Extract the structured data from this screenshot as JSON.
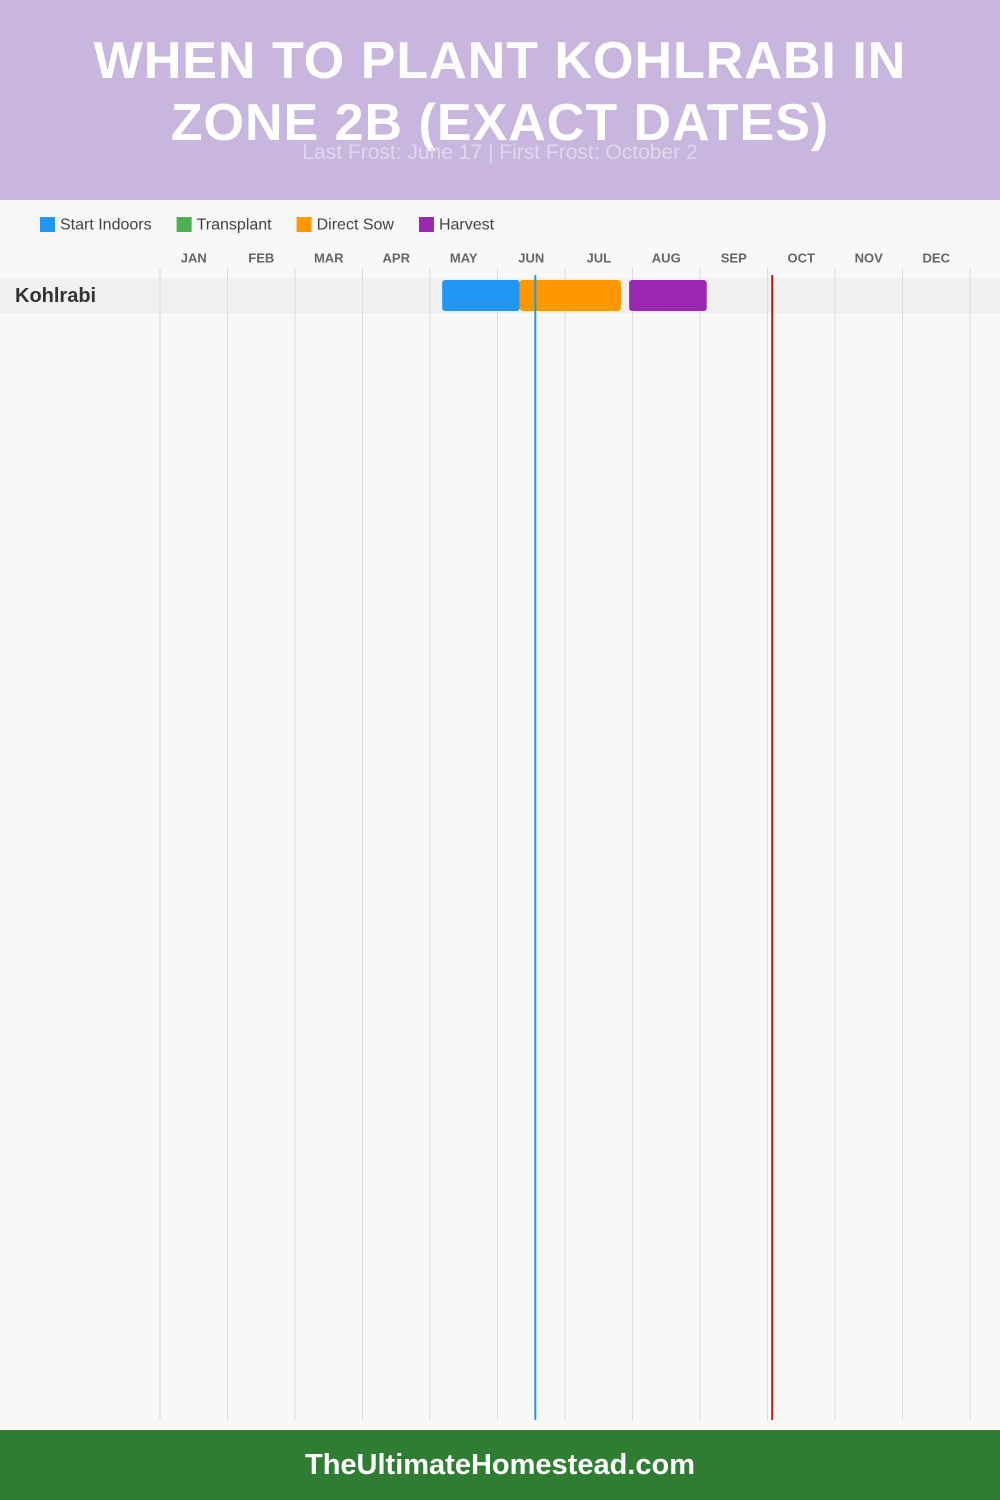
{
  "chart_data": {
    "type": "gantt",
    "title": "WHEN TO PLANT KOHLRABI IN ZONE 2B (EXACT DATES)",
    "subtitle": "Last Frost: June 17 | First Frost: October 2",
    "categories": [
      "Kohlrabi"
    ],
    "series": [
      {
        "name": "Start Indoors",
        "color": "#2196f3",
        "values": [
          [
            4.18,
            5.33
          ]
        ]
      },
      {
        "name": "Transplant",
        "color": "#4caf50",
        "values": [
          null
        ]
      },
      {
        "name": "Direct Sow",
        "color": "#ff9800",
        "values": [
          [
            5.33,
            6.83
          ]
        ]
      },
      {
        "name": "Harvest",
        "color": "#9c27b0",
        "values": [
          [
            6.95,
            8.1
          ]
        ]
      }
    ],
    "xlim": [
      0,
      12
    ],
    "xticks": [
      {
        "value": 0,
        "label": "JAN"
      },
      {
        "value": 1,
        "label": "FEB"
      },
      {
        "value": 2,
        "label": "MAR"
      },
      {
        "value": 3,
        "label": "APR"
      },
      {
        "value": 4,
        "label": "MAY"
      },
      {
        "value": 5,
        "label": "JUN"
      },
      {
        "value": 6,
        "label": "JUL"
      },
      {
        "value": 7,
        "label": "AUG"
      },
      {
        "value": 8,
        "label": "SEP"
      },
      {
        "value": 9,
        "label": "OCT"
      },
      {
        "value": 10,
        "label": "NOV"
      },
      {
        "value": 11,
        "label": "DEC"
      }
    ],
    "grid": true,
    "reference_lines": [
      {
        "value": 5.56,
        "color": "#2196f3"
      },
      {
        "value": 9.07,
        "color": "#b71c1c"
      }
    ]
  },
  "footer": "TheUltimateHomestead.com"
}
